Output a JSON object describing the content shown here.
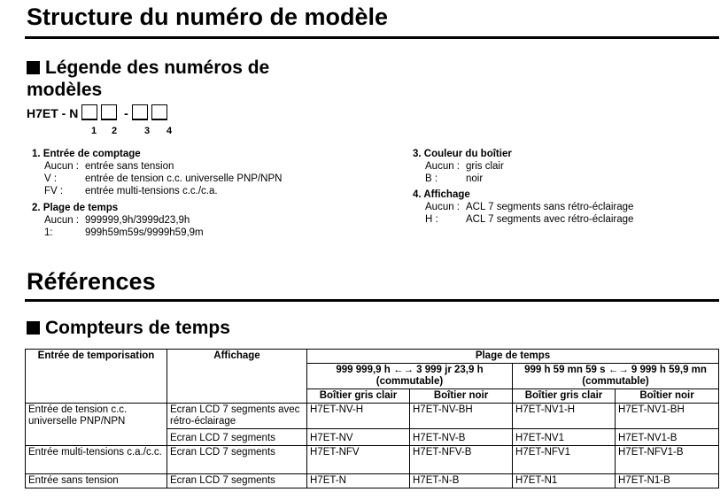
{
  "title": "Structure du numéro de modèle",
  "legend_heading": "Légende des numéros de modèles",
  "model_prefix": "H7ET - N",
  "model_sep": "-",
  "positions": [
    "1",
    "2",
    "3",
    "4"
  ],
  "sections": [
    {
      "title": "1. Entrée de comptage",
      "rows": [
        [
          "Aucun :",
          "entrée sans tension"
        ],
        [
          "V :",
          "entrée de tension c.c. universelle PNP/NPN"
        ],
        [
          "FV :",
          "entrée multi-tensions c.c./c.a."
        ]
      ]
    },
    {
      "title": "2. Plage de temps",
      "rows": [
        [
          "Aucun :",
          "999999,9h/3999d23,9h"
        ],
        [
          "1:",
          "999h59m59s/9999h59,9m"
        ]
      ]
    },
    {
      "title": "3. Couleur du boîtier",
      "rows": [
        [
          "Aucun :",
          "gris clair"
        ],
        [
          "B :",
          "noir"
        ]
      ]
    },
    {
      "title": "4. Affichage",
      "rows": [
        [
          "Aucun :",
          "ACL 7 segments sans rétro-éclairage"
        ],
        [
          "H :",
          "ACL 7 segments avec rétro-éclairage"
        ]
      ]
    }
  ],
  "references_title": "Références",
  "counters_heading": "Compteurs de temps",
  "table": {
    "h_input": "Entrée de temporisation",
    "h_display": "Affichage",
    "h_range": "Plage de temps",
    "range1": "999 999,9 h ←→ 3 999 jr 23,9 h",
    "range2": "999 h 59 mn 59 s ←→ 9 999 h 59,9 mn",
    "switchable": "(commutable)",
    "light": "Boîtier gris clair",
    "black": "Boîtier noir",
    "rows": [
      {
        "input": "Entrée de tension c.c. universelle PNP/NPN",
        "display": "Ecran LCD 7 segments avec rétro-éclairage",
        "m": [
          "H7ET-NV-H",
          "H7ET-NV-BH",
          "H7ET-NV1-H",
          "H7ET-NV1-BH"
        ]
      },
      {
        "display": "Ecran LCD 7 segments",
        "m": [
          "H7ET-NV",
          "H7ET-NV-B",
          "H7ET-NV1",
          "H7ET-NV1-B"
        ]
      },
      {
        "input": "Entrée multi-tensions c.a./c.c.",
        "display": "Ecran LCD 7 segments",
        "m": [
          "H7ET-NFV",
          "H7ET-NFV-B",
          "H7ET-NFV1",
          "H7ET-NFV1-B"
        ]
      },
      {
        "input": "Entrée sans tension",
        "display": "Ecran LCD 7 segments",
        "m": [
          "H7ET-N",
          "H7ET-N-B",
          "H7ET-N1",
          "H7ET-N1-B"
        ]
      }
    ]
  }
}
